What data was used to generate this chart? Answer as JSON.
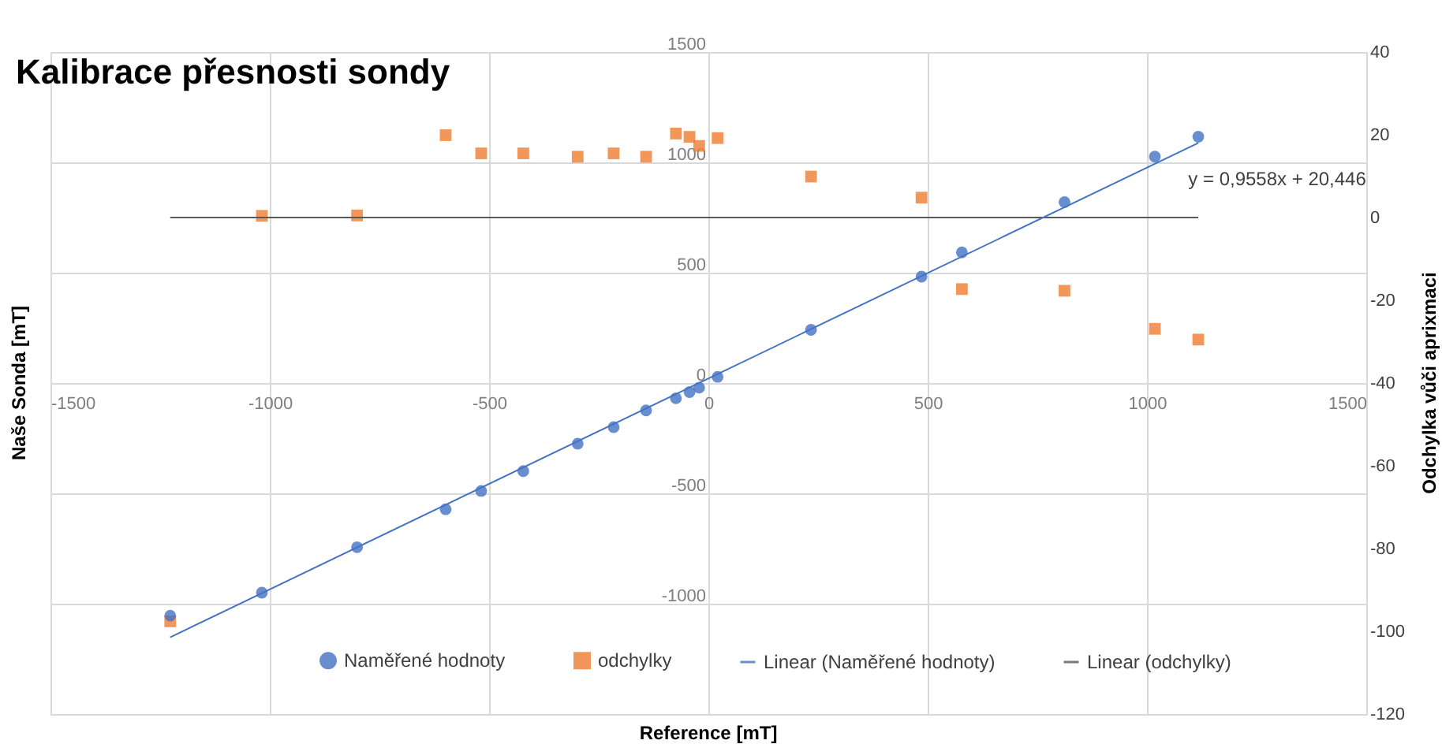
{
  "chart_data": {
    "type": "scatter",
    "title": "Kalibrace přesnosti sondy",
    "xlabel": "Reference [mT]",
    "ylabel": "Naše Sonda [mT]",
    "y2label": "Odchylka vůči aprixmaci",
    "xlim": [
      -1500,
      1500
    ],
    "xticks": [
      -1500,
      -1000,
      -500,
      0,
      500,
      1000,
      1500
    ],
    "ylim": [
      -1500,
      1500
    ],
    "yticks": [
      {
        "value": -1500,
        "label": null
      },
      -1000,
      -500,
      0,
      500,
      1000,
      1500
    ],
    "y2lim": [
      -120,
      40
    ],
    "y2ticks": [
      -120,
      -100,
      -80,
      -60,
      -40,
      -20,
      0,
      20,
      40
    ],
    "grid": true,
    "legend": "bottom",
    "annotations": [
      {
        "text": "y = 0,9558x + 20,446",
        "x": 1117,
        "y": 1088
      }
    ],
    "series": [
      {
        "name": "Naměřené hodnoty",
        "marker": "circle",
        "color": "#4472c4",
        "x": [
          -1227,
          -1018,
          -801,
          -599,
          -518,
          -422,
          -298,
          -216,
          -142,
          -74,
          -43,
          -21,
          21,
          234,
          486,
          578,
          812,
          1018,
          1117
        ],
        "values": [
          -1054,
          -950,
          -744,
          -572,
          -489,
          -399,
          -275,
          -200,
          -124,
          -69,
          -41,
          -21,
          28,
          241,
          482,
          592,
          820,
          1026,
          1116
        ]
      },
      {
        "name": "odchylky",
        "marker": "square",
        "color": "#ed7d31",
        "axis": "y2",
        "x": [
          -1227,
          -1018,
          -801,
          -599,
          -518,
          -422,
          -298,
          -216,
          -142,
          -74,
          -43,
          -21,
          21,
          234,
          486,
          578,
          812,
          1018,
          1117
        ],
        "values": [
          -97.6,
          0.4,
          0.5,
          19.9,
          15.5,
          15.5,
          14.7,
          15.5,
          14.7,
          20.3,
          19.5,
          17.3,
          19.2,
          9.9,
          4.8,
          -17.3,
          -17.7,
          -26.9,
          -29.5
        ]
      },
      {
        "name": "Linear (Naměřené hodnoty)",
        "type": "line",
        "color": "#4472c4",
        "x": [
          -1227,
          1117
        ],
        "values": [
          -1152,
          1088
        ]
      },
      {
        "name": "Linear (odchylky)",
        "type": "line",
        "color": "#595959",
        "axis": "y2",
        "x": [
          -1227,
          1117
        ],
        "values": [
          0,
          0
        ]
      }
    ]
  }
}
